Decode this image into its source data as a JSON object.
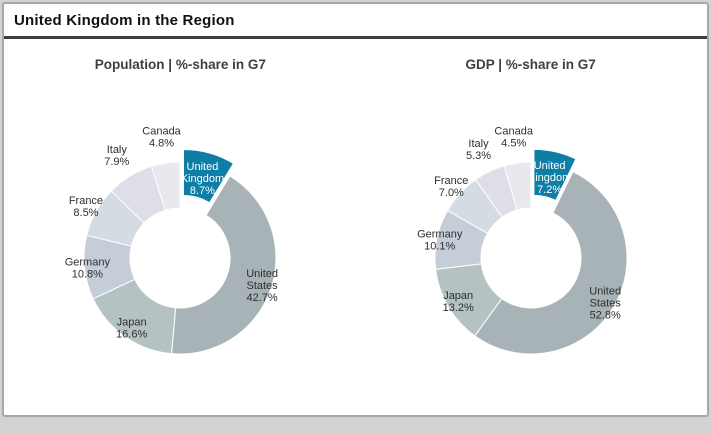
{
  "header": {
    "title": "United Kingdom in the Region"
  },
  "colors": {
    "highlight": "#0f7ea6",
    "label_text": "#2e2e2e",
    "highlight_label_text": "#ffffff",
    "palette": {
      "United Kingdom": "#0f7ea6",
      "United States": "#a8b3b8",
      "Japan": "#b5c2c2",
      "Germany": "#c4cdd8",
      "France": "#d5dbe2",
      "Italy": "#dddee8",
      "Canada": "#e8e9ed"
    }
  },
  "chart_data": [
    {
      "type": "pie",
      "variant": "donut",
      "title": "Population | %-share in G7",
      "legend_position": "labels-on-chart",
      "highlight_slice": "United Kingdom",
      "slices": [
        {
          "label": "United Kingdom",
          "value": 8.7,
          "display": "8.7%",
          "highlight": true
        },
        {
          "label": "United States",
          "value": 42.7,
          "display": "42.7%",
          "highlight": false
        },
        {
          "label": "Japan",
          "value": 16.6,
          "display": "16.6%",
          "highlight": false
        },
        {
          "label": "Germany",
          "value": 10.8,
          "display": "10.8%",
          "highlight": false
        },
        {
          "label": "France",
          "value": 8.5,
          "display": "8.5%",
          "highlight": false
        },
        {
          "label": "Italy",
          "value": 7.9,
          "display": "7.9%",
          "highlight": false
        },
        {
          "label": "Canada",
          "value": 4.8,
          "display": "4.8%",
          "highlight": false
        }
      ]
    },
    {
      "type": "pie",
      "variant": "donut",
      "title": "GDP | %-share in G7",
      "legend_position": "labels-on-chart",
      "highlight_slice": "United Kingdom",
      "slices": [
        {
          "label": "United Kingdom",
          "value": 7.2,
          "display": "7.2%",
          "highlight": true
        },
        {
          "label": "United States",
          "value": 52.8,
          "display": "52.8%",
          "highlight": false
        },
        {
          "label": "Japan",
          "value": 13.2,
          "display": "13.2%",
          "highlight": false
        },
        {
          "label": "Germany",
          "value": 10.1,
          "display": "10.1%",
          "highlight": false
        },
        {
          "label": "France",
          "value": 7.0,
          "display": "7.0%",
          "highlight": false
        },
        {
          "label": "Italy",
          "value": 5.3,
          "display": "5.3%",
          "highlight": false
        },
        {
          "label": "Canada",
          "value": 4.5,
          "display": "4.5%",
          "highlight": false
        }
      ]
    }
  ]
}
